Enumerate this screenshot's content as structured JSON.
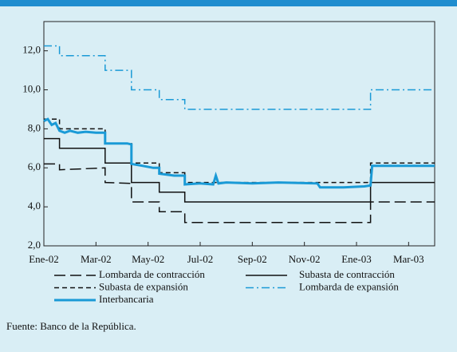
{
  "chart_data": {
    "type": "line",
    "xlim": [
      0,
      15
    ],
    "xticks": [
      {
        "value": 0,
        "label": "Ene-02"
      },
      {
        "value": 2,
        "label": "Mar-02"
      },
      {
        "value": 4,
        "label": "May-02"
      },
      {
        "value": 6,
        "label": "Jul-02"
      },
      {
        "value": 8,
        "label": "Sep-02"
      },
      {
        "value": 10,
        "label": "Nov-02"
      },
      {
        "value": 12,
        "label": "Ene-03"
      },
      {
        "value": 14,
        "label": "Mar-03"
      }
    ],
    "ylim": [
      2,
      13.5
    ],
    "yticks": [
      {
        "value": 2,
        "label": "2,0"
      },
      {
        "value": 4,
        "label": "4,0"
      },
      {
        "value": 6,
        "label": "6,0"
      },
      {
        "value": 8,
        "label": "8,0"
      },
      {
        "value": 10,
        "label": "10,0"
      },
      {
        "value": 12,
        "label": "12,0"
      }
    ],
    "series": [
      {
        "name": "Lombarda de contracción",
        "color": "#111111",
        "style": "long-dash",
        "x": [
          0,
          0.6,
          0.6,
          2.35,
          2.35,
          3.36,
          3.36,
          4.43,
          4.43,
          5.41,
          5.41,
          12.54,
          12.54,
          15
        ],
        "values": [
          6.2,
          6.2,
          5.9,
          6.0,
          5.25,
          5.2,
          4.25,
          4.25,
          3.75,
          3.75,
          3.2,
          3.2,
          4.25,
          4.25
        ]
      },
      {
        "name": "Subasta de contracción",
        "color": "#111111",
        "style": "solid",
        "x": [
          0,
          0.6,
          0.6,
          2.35,
          2.35,
          3.36,
          3.36,
          4.43,
          4.43,
          5.41,
          5.41,
          12.54,
          12.54,
          15
        ],
        "values": [
          7.5,
          7.5,
          7.0,
          7.0,
          6.25,
          6.25,
          5.25,
          5.25,
          4.75,
          4.75,
          4.25,
          4.25,
          5.25,
          5.25
        ]
      },
      {
        "name": "Subasta de expansión",
        "color": "#111111",
        "style": "short-dash",
        "x": [
          0,
          0.6,
          0.6,
          2.35,
          2.35,
          3.36,
          3.36,
          4.43,
          4.43,
          5.41,
          5.41,
          12.54,
          12.54,
          15
        ],
        "values": [
          8.5,
          8.5,
          8.0,
          8.0,
          7.25,
          7.25,
          6.25,
          6.25,
          5.75,
          5.75,
          5.25,
          5.25,
          6.25,
          6.25
        ]
      },
      {
        "name": "Lombarda de expansión",
        "color": "#1a9ad6",
        "style": "dash-dot",
        "x": [
          0,
          0.6,
          0.6,
          2.35,
          2.35,
          3.36,
          3.36,
          4.43,
          4.43,
          5.41,
          5.41,
          12.54,
          12.54,
          15
        ],
        "values": [
          12.25,
          12.25,
          11.75,
          11.75,
          11.0,
          11.0,
          10.0,
          10.0,
          9.5,
          9.5,
          9.0,
          9.0,
          10.0,
          10.0
        ]
      },
      {
        "name": "Interbancaria",
        "color": "#1a9ad6",
        "style": "thick",
        "x": [
          0,
          0.15,
          0.3,
          0.45,
          0.6,
          0.8,
          1.0,
          1.3,
          1.6,
          2.0,
          2.35,
          2.35,
          3.2,
          3.36,
          3.36,
          3.8,
          4.2,
          4.43,
          4.43,
          5.0,
          5.41,
          5.41,
          6.0,
          6.5,
          6.6,
          6.7,
          7.0,
          8.0,
          9.0,
          10.5,
          10.6,
          11.5,
          12.3,
          12.54,
          12.6,
          13.5,
          15
        ],
        "values": [
          8.4,
          8.5,
          8.2,
          8.3,
          7.9,
          7.8,
          7.9,
          7.8,
          7.85,
          7.8,
          7.8,
          7.25,
          7.25,
          7.2,
          6.2,
          6.1,
          6.0,
          6.0,
          5.7,
          5.6,
          5.6,
          5.15,
          5.2,
          5.15,
          5.6,
          5.2,
          5.25,
          5.2,
          5.25,
          5.2,
          5.0,
          5.0,
          5.05,
          5.1,
          6.1,
          6.1,
          6.1
        ]
      }
    ],
    "source": "Fuente: Banco de la República."
  }
}
